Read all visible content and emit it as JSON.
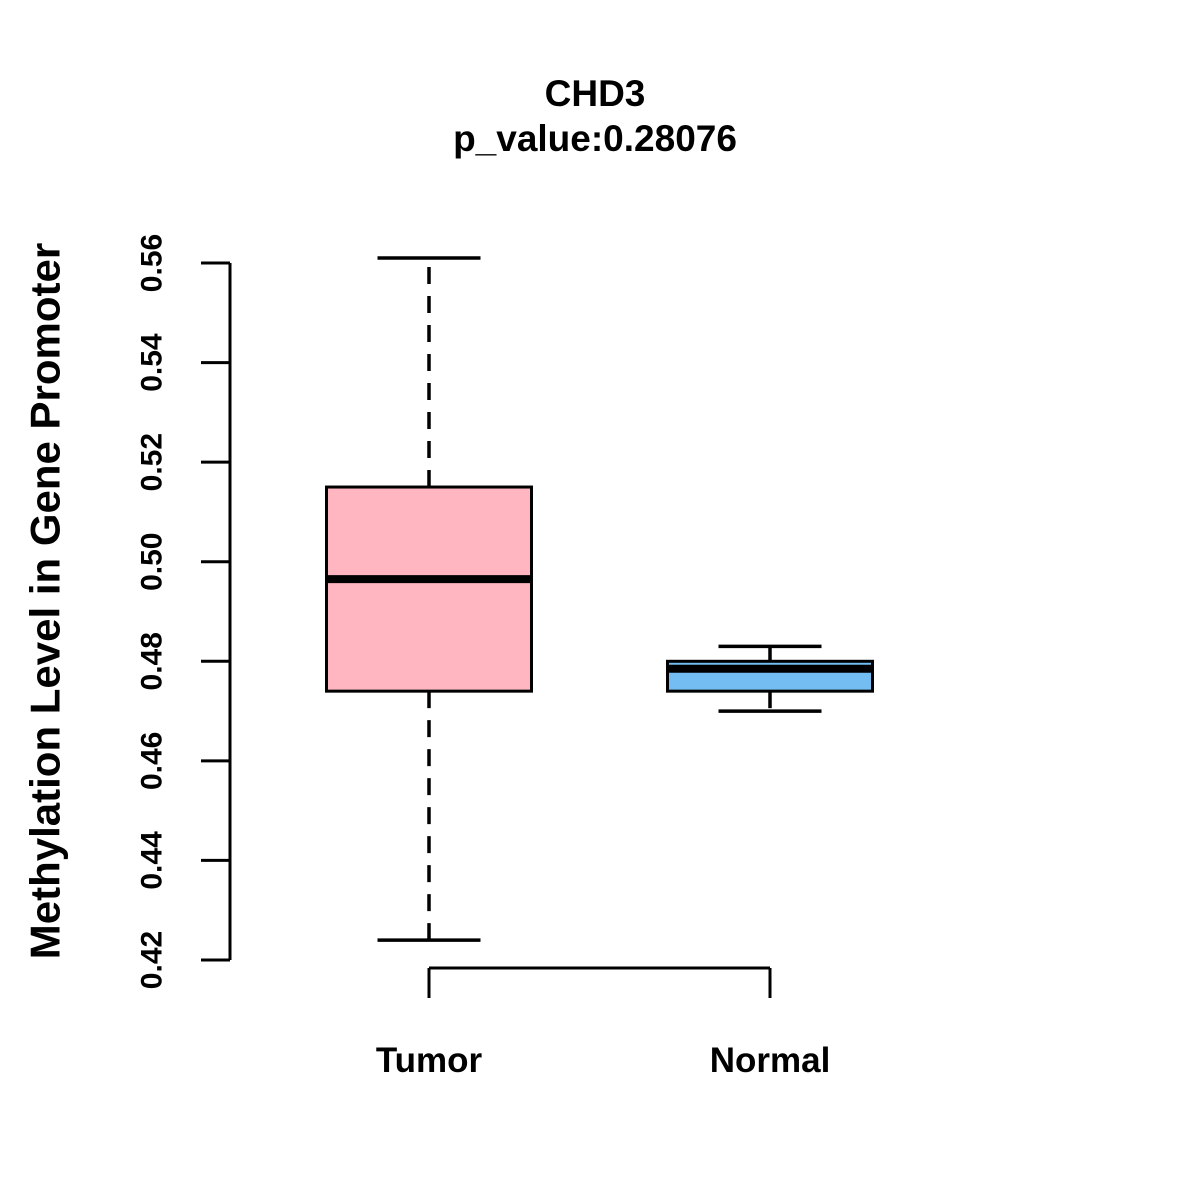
{
  "header": {
    "title": "CHD3",
    "subtitle": "p_value:0.28076"
  },
  "y_axis": {
    "label": "Methylation Level in Gene Promoter",
    "tick_labels": [
      "0.42",
      "0.44",
      "0.46",
      "0.48",
      "0.50",
      "0.52",
      "0.54",
      "0.56"
    ]
  },
  "x_axis": {
    "group_labels": [
      "Tumor",
      "Normal"
    ]
  },
  "colors": {
    "tumor_box_fill": "#FFB6C1",
    "normal_box_fill": "#74BDF2",
    "line": "#000000",
    "background": "#FFFFFF"
  },
  "chart_data": {
    "type": "boxplot",
    "title": "CHD3",
    "subtitle": "p_value:0.28076",
    "gene": "CHD3",
    "p_value": 0.28076,
    "xlabel": "",
    "ylabel": "Methylation Level in Gene Promoter",
    "ylim": [
      0.42,
      0.56
    ],
    "yticks": [
      0.42,
      0.44,
      0.46,
      0.48,
      0.5,
      0.52,
      0.54,
      0.56
    ],
    "categories": [
      "Tumor",
      "Normal"
    ],
    "grid": false,
    "legend_position": "none",
    "series": [
      {
        "name": "Tumor",
        "fill": "#FFB6C1",
        "whisker_low": 0.424,
        "q1": 0.474,
        "median": 0.4965,
        "q3": 0.515,
        "whisker_high": 0.561,
        "outliers": []
      },
      {
        "name": "Normal",
        "fill": "#74BDF2",
        "whisker_low": 0.47,
        "q1": 0.474,
        "median": 0.4785,
        "q3": 0.48,
        "whisker_high": 0.483,
        "outliers": []
      }
    ]
  }
}
